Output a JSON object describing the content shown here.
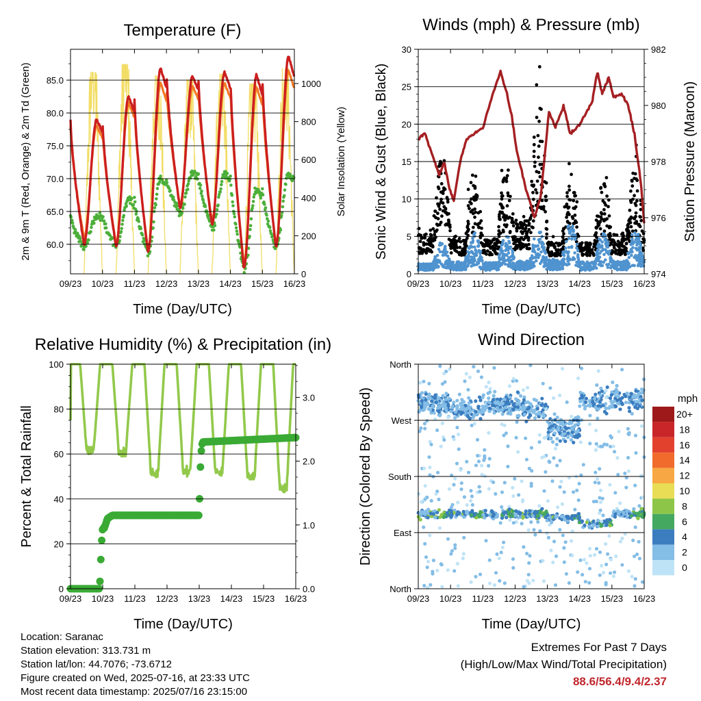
{
  "chart_data": [
    {
      "type": "line",
      "title": "Temperature (F)",
      "xlabel": "Time (Day/UTC)",
      "ylabel": "2m & 9m T (Red, Orange) & 2m Td (Green)",
      "ylabel_right": "Solar Insolation (Yellow)",
      "x_ticks": [
        "09/23",
        "10/23",
        "11/23",
        "12/23",
        "13/23",
        "14/23",
        "15/23",
        "16/23"
      ],
      "y_ticks": [
        "60.0",
        "65.0",
        "70.0",
        "75.0",
        "80.0",
        "85.0"
      ],
      "y_right_ticks": [
        "0",
        "200",
        "400",
        "600",
        "800",
        "1000"
      ],
      "ylim": [
        55.5,
        89.7
      ],
      "ylim_right": [
        0,
        1180
      ],
      "grid": true,
      "series": [
        {
          "name": "2m T",
          "color": "#cc1f1f",
          "daily_max": [
            79.0,
            82.5,
            86.8,
            85.6,
            86.2,
            85.8,
            88.6
          ],
          "daily_min": [
            60.0,
            59.7,
            58.9,
            65.5,
            63.0,
            56.4,
            59.6
          ]
        },
        {
          "name": "9m T",
          "color": "#f27a24",
          "daily_max": [
            78.0,
            81.5,
            84.5,
            84.0,
            84.5,
            84.0,
            86.5
          ],
          "daily_min": [
            61.0,
            60.2,
            59.3,
            65.9,
            63.5,
            57.0,
            60.0
          ]
        },
        {
          "name": "2m Td",
          "color": "#4caf3a",
          "daily_max": [
            64.2,
            67.0,
            70.0,
            70.8,
            70.6,
            68.5,
            70.8
          ],
          "daily_min": [
            59.6,
            59.6,
            58.8,
            64.8,
            62.5,
            56.0,
            59.4
          ]
        },
        {
          "name": "Solar Insolation",
          "color": "#f2dd66",
          "daily_peak": [
            1060,
            1100,
            1040,
            1020,
            1050,
            1000,
            1080
          ]
        }
      ]
    },
    {
      "type": "scatter",
      "title": "Winds (mph) & Pressure (mb)",
      "xlabel": "Time (Day/UTC)",
      "ylabel": "Sonic Wind & Gust (Blue, Black)",
      "ylabel_right": "Station Pressure (Maroon)",
      "x_ticks": [
        "09/23",
        "10/23",
        "11/23",
        "12/23",
        "13/23",
        "14/23",
        "15/23",
        "16/23"
      ],
      "y_ticks": [
        "0",
        "5",
        "10",
        "15",
        "20",
        "25",
        "30"
      ],
      "y_right_ticks": [
        "974",
        "976",
        "978",
        "980",
        "982"
      ],
      "ylim": [
        0,
        30
      ],
      "ylim_right": [
        974,
        982
      ],
      "grid": true,
      "series": [
        {
          "name": "Sonic Wind",
          "color": "#4f93cf",
          "daily_peak": [
            6.0,
            7.5,
            7.0,
            8.0,
            9.4,
            7.5,
            8.0
          ]
        },
        {
          "name": "Gust",
          "color": "#000000",
          "daily_peak": [
            19.0,
            15.5,
            16.0,
            28.0,
            14.0,
            13.5,
            16.0
          ]
        },
        {
          "name": "Station Pressure",
          "color": "#a52023",
          "t": [
            0.0,
            0.2,
            0.45,
            0.65,
            0.8,
            0.95,
            1.1,
            1.3,
            1.5,
            1.75,
            2.0,
            2.3,
            2.55,
            2.75,
            2.9,
            3.05,
            3.3,
            3.6,
            3.8,
            4.05,
            4.25,
            4.5,
            4.7,
            4.9,
            5.15,
            5.4,
            5.55,
            5.7,
            5.9,
            6.05,
            6.3,
            6.5,
            6.7,
            6.9,
            7.0
          ],
          "values": [
            978.8,
            979.0,
            978.2,
            977.5,
            978.0,
            977.1,
            976.6,
            978.0,
            978.8,
            979.0,
            979.2,
            980.4,
            981.2,
            980.4,
            979.6,
            978.4,
            977.2,
            976.0,
            976.8,
            979.8,
            979.2,
            980.0,
            979.0,
            979.2,
            979.6,
            980.2,
            981.2,
            980.4,
            981.0,
            980.3,
            980.4,
            980.0,
            979.0,
            977.2,
            975.8
          ]
        }
      ]
    },
    {
      "type": "line",
      "title": "Relative Humidity (%) & Precipitation (in)",
      "xlabel": "Time (Day/UTC)",
      "ylabel": "Percent & Total Rainfall",
      "x_ticks": [
        "09/23",
        "10/23",
        "11/23",
        "12/23",
        "13/23",
        "14/23",
        "15/23",
        "16/23"
      ],
      "y_ticks": [
        "0",
        "20",
        "40",
        "60",
        "80",
        "100"
      ],
      "y_right_ticks": [
        "0.0",
        "1.0",
        "2.0",
        "3.0"
      ],
      "ylim": [
        0,
        100
      ],
      "ylim_right": [
        0,
        3.52
      ],
      "grid": true,
      "series": [
        {
          "name": "Relative Humidity",
          "color": "#92c94b",
          "daily_min": [
            61,
            61,
            51,
            52,
            52,
            50,
            45
          ],
          "daily_max": [
            100,
            100,
            100,
            100,
            100,
            100,
            100
          ]
        },
        {
          "name": "Total Precipitation",
          "color": "#3aaa35",
          "t": [
            0.0,
            0.9,
            0.92,
            0.96,
            1.0,
            1.05,
            1.15,
            1.3,
            4.0,
            4.02,
            4.05,
            4.1,
            7.0
          ],
          "values": [
            0.0,
            0.0,
            0.15,
            0.7,
            0.95,
            0.95,
            1.1,
            1.15,
            1.15,
            1.6,
            2.1,
            2.3,
            2.37
          ]
        }
      ]
    },
    {
      "type": "scatter",
      "title": "Wind Direction",
      "xlabel": "Time (Day/UTC)",
      "ylabel": "Direction (Colored By Speed)",
      "x_ticks": [
        "09/23",
        "10/23",
        "11/23",
        "12/23",
        "13/23",
        "14/23",
        "15/23",
        "16/23"
      ],
      "y_ticks": [
        "North",
        "East",
        "South",
        "West",
        "North"
      ],
      "ylim": [
        0,
        360
      ],
      "grid": true,
      "colorbar": {
        "unit": "mph",
        "labels": [
          "20+",
          "18",
          "16",
          "14",
          "12",
          "10",
          "8",
          "6",
          "4",
          "2",
          "0"
        ],
        "colors": [
          "#9e1a1a",
          "#c9262a",
          "#e2412e",
          "#f06b2c",
          "#f7a743",
          "#e8dd55",
          "#8cc548",
          "#45a861",
          "#3b7dbf",
          "#84bde6",
          "#bfe3f6"
        ]
      },
      "series": [
        {
          "name": "Wind Direction",
          "daily_modes_deg": [
            [
              120,
              295
            ],
            [
              120,
              290
            ],
            [
              120,
              295
            ],
            [
              120,
              290
            ],
            [
              115,
              255
            ],
            [
              105,
              300
            ],
            [
              120,
              305
            ]
          ]
        }
      ]
    }
  ],
  "info": {
    "location": "Location: Saranac",
    "elevation": "Station elevation: 313.731 m",
    "latlon": "Station lat/lon: 44.7076; -73.6712",
    "created": "Figure created on Wed, 2025-07-16, at 23:33 UTC",
    "timestamp": "Most recent data timestamp: 2025/07/16 23:15:00"
  },
  "extremes": {
    "heading": "Extremes For Past 7 Days",
    "legend": "(High/Low/Max Wind/Total Precipitation)",
    "values": "88.6/56.4/9.4/2.37"
  }
}
